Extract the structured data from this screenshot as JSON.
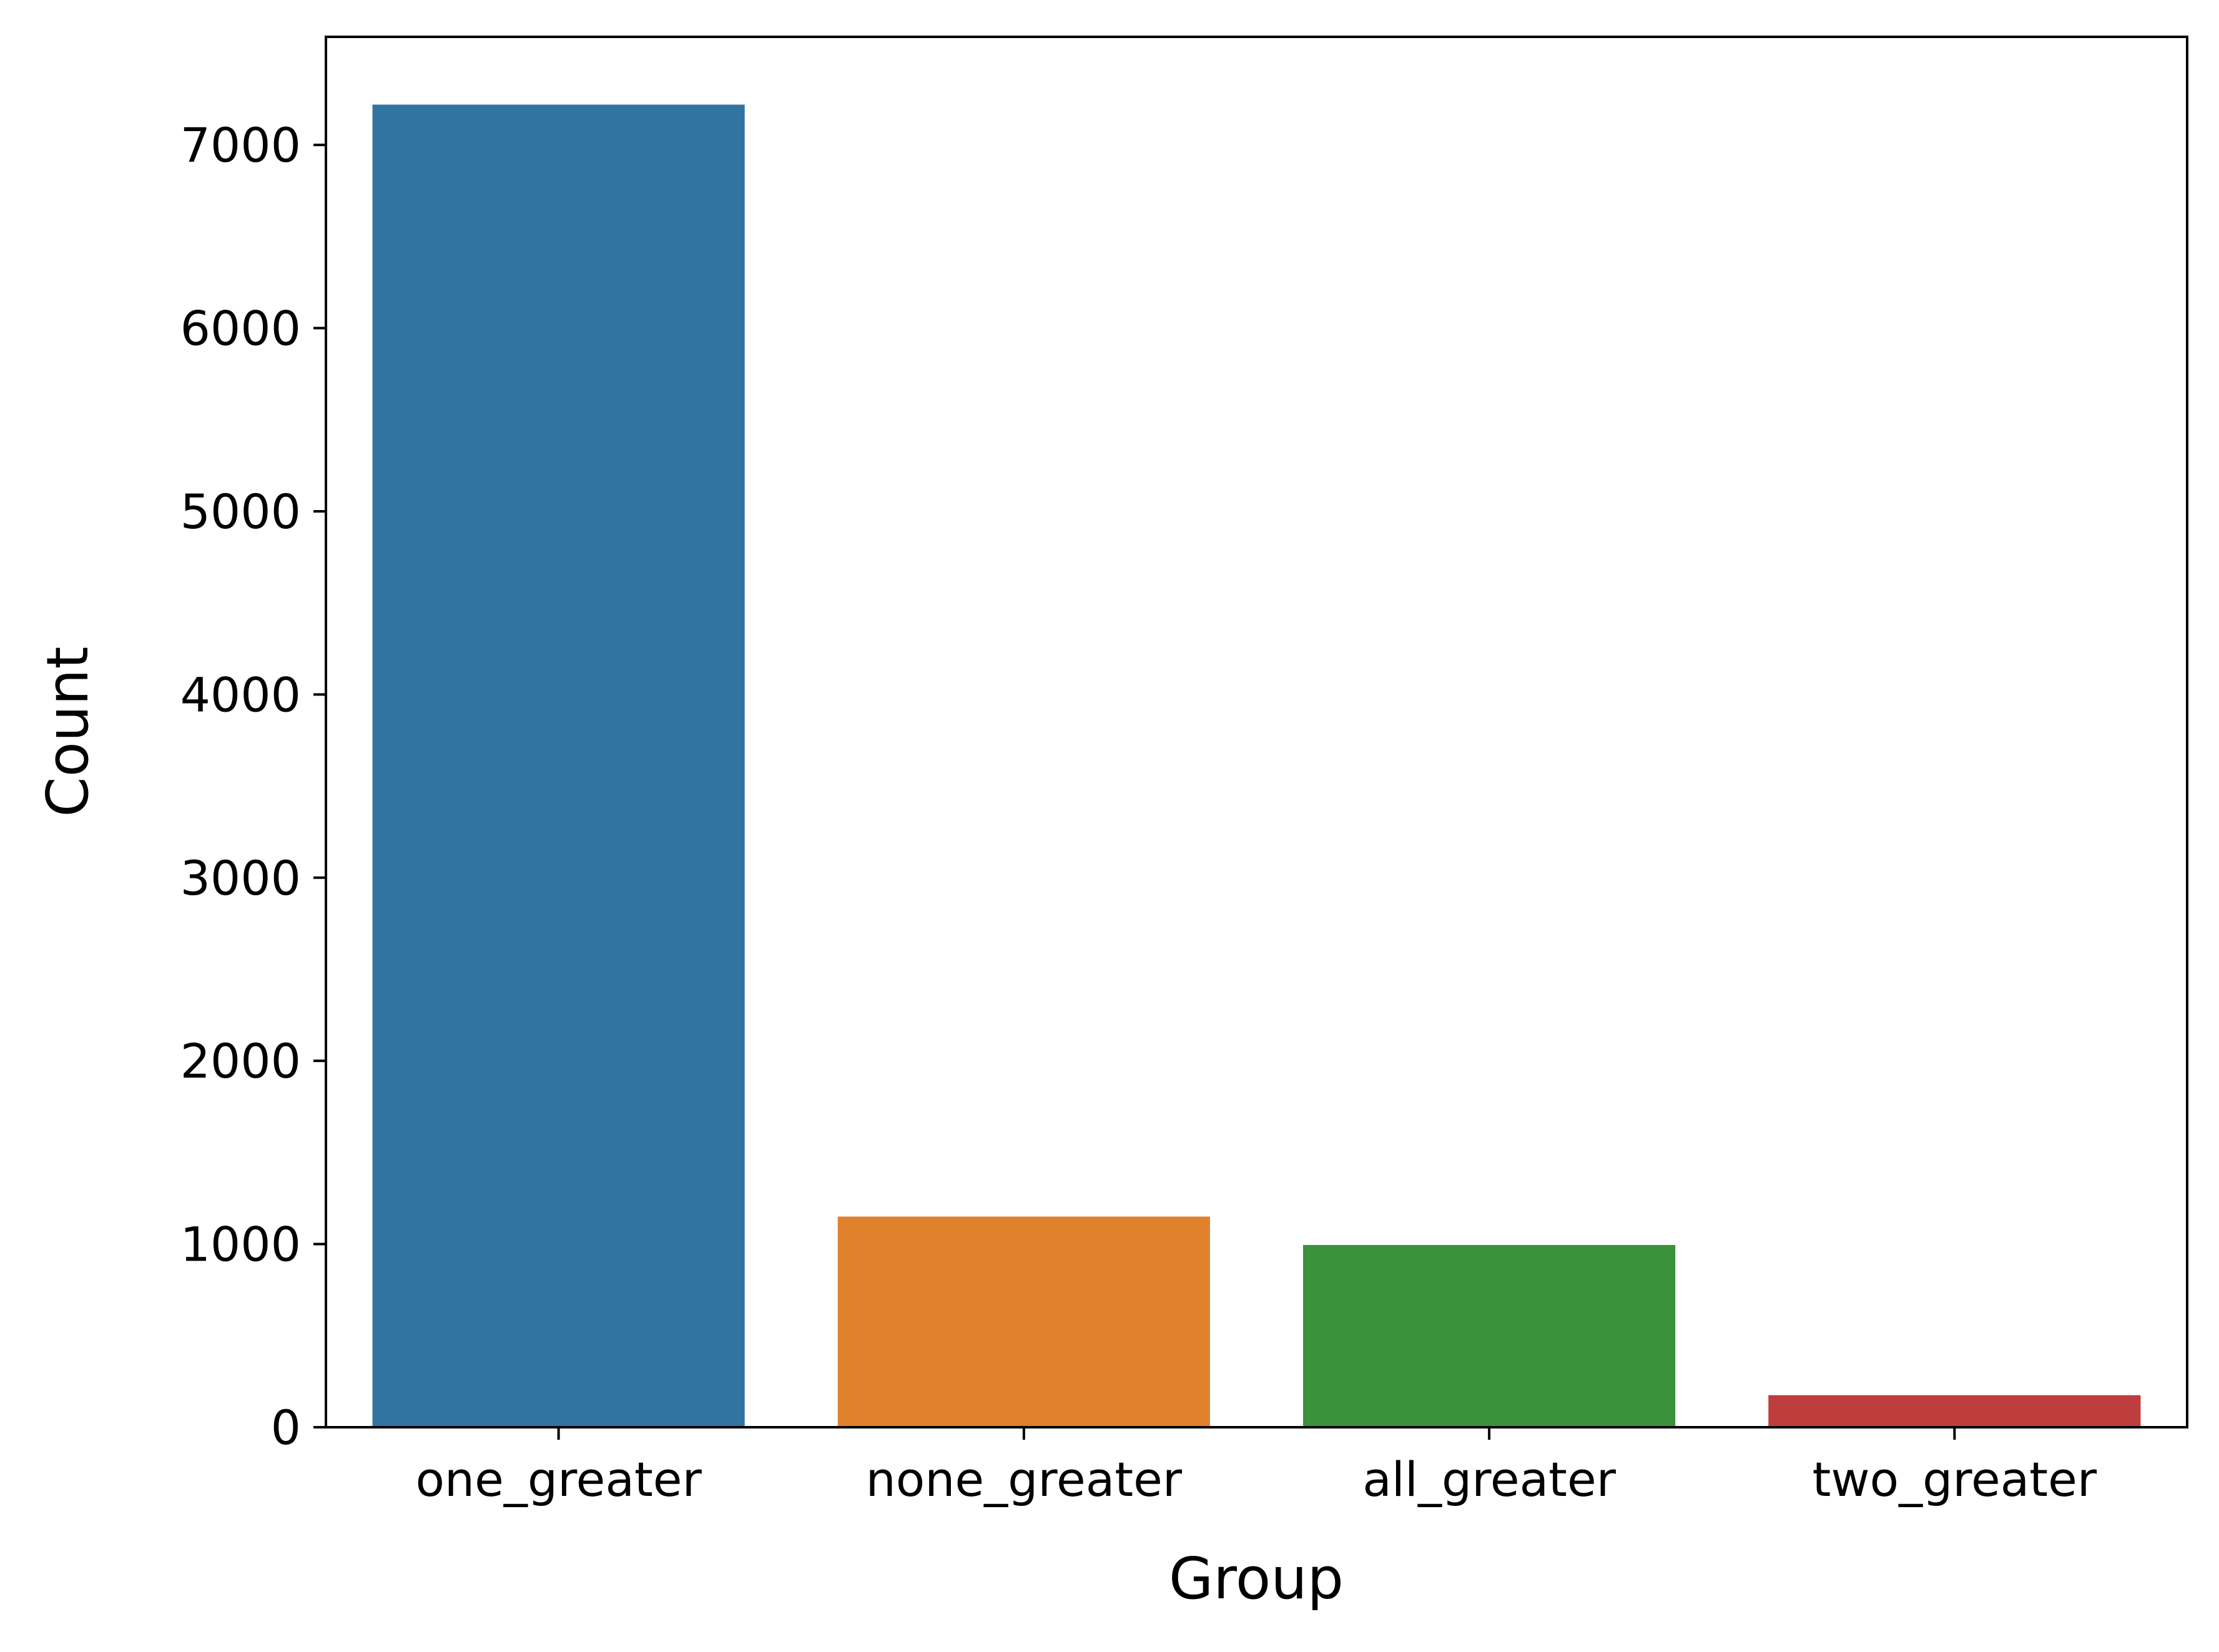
{
  "chart_data": {
    "type": "bar",
    "title": "",
    "xlabel": "Group",
    "ylabel": "Count",
    "categories": [
      "one_greater",
      "none_greater",
      "all_greater",
      "two_greater"
    ],
    "values": [
      7220,
      1150,
      995,
      175
    ],
    "colors": [
      "#3274a1",
      "#e1812c",
      "#3a923a",
      "#c03d3e"
    ],
    "ylim": [
      0,
      7590
    ],
    "yticks": [
      0,
      1000,
      2000,
      3000,
      4000,
      5000,
      6000,
      7000
    ],
    "ytick_labels": [
      "0",
      "1000",
      "2000",
      "3000",
      "4000",
      "5000",
      "6000",
      "7000"
    ],
    "grid": false,
    "legend": "none"
  }
}
